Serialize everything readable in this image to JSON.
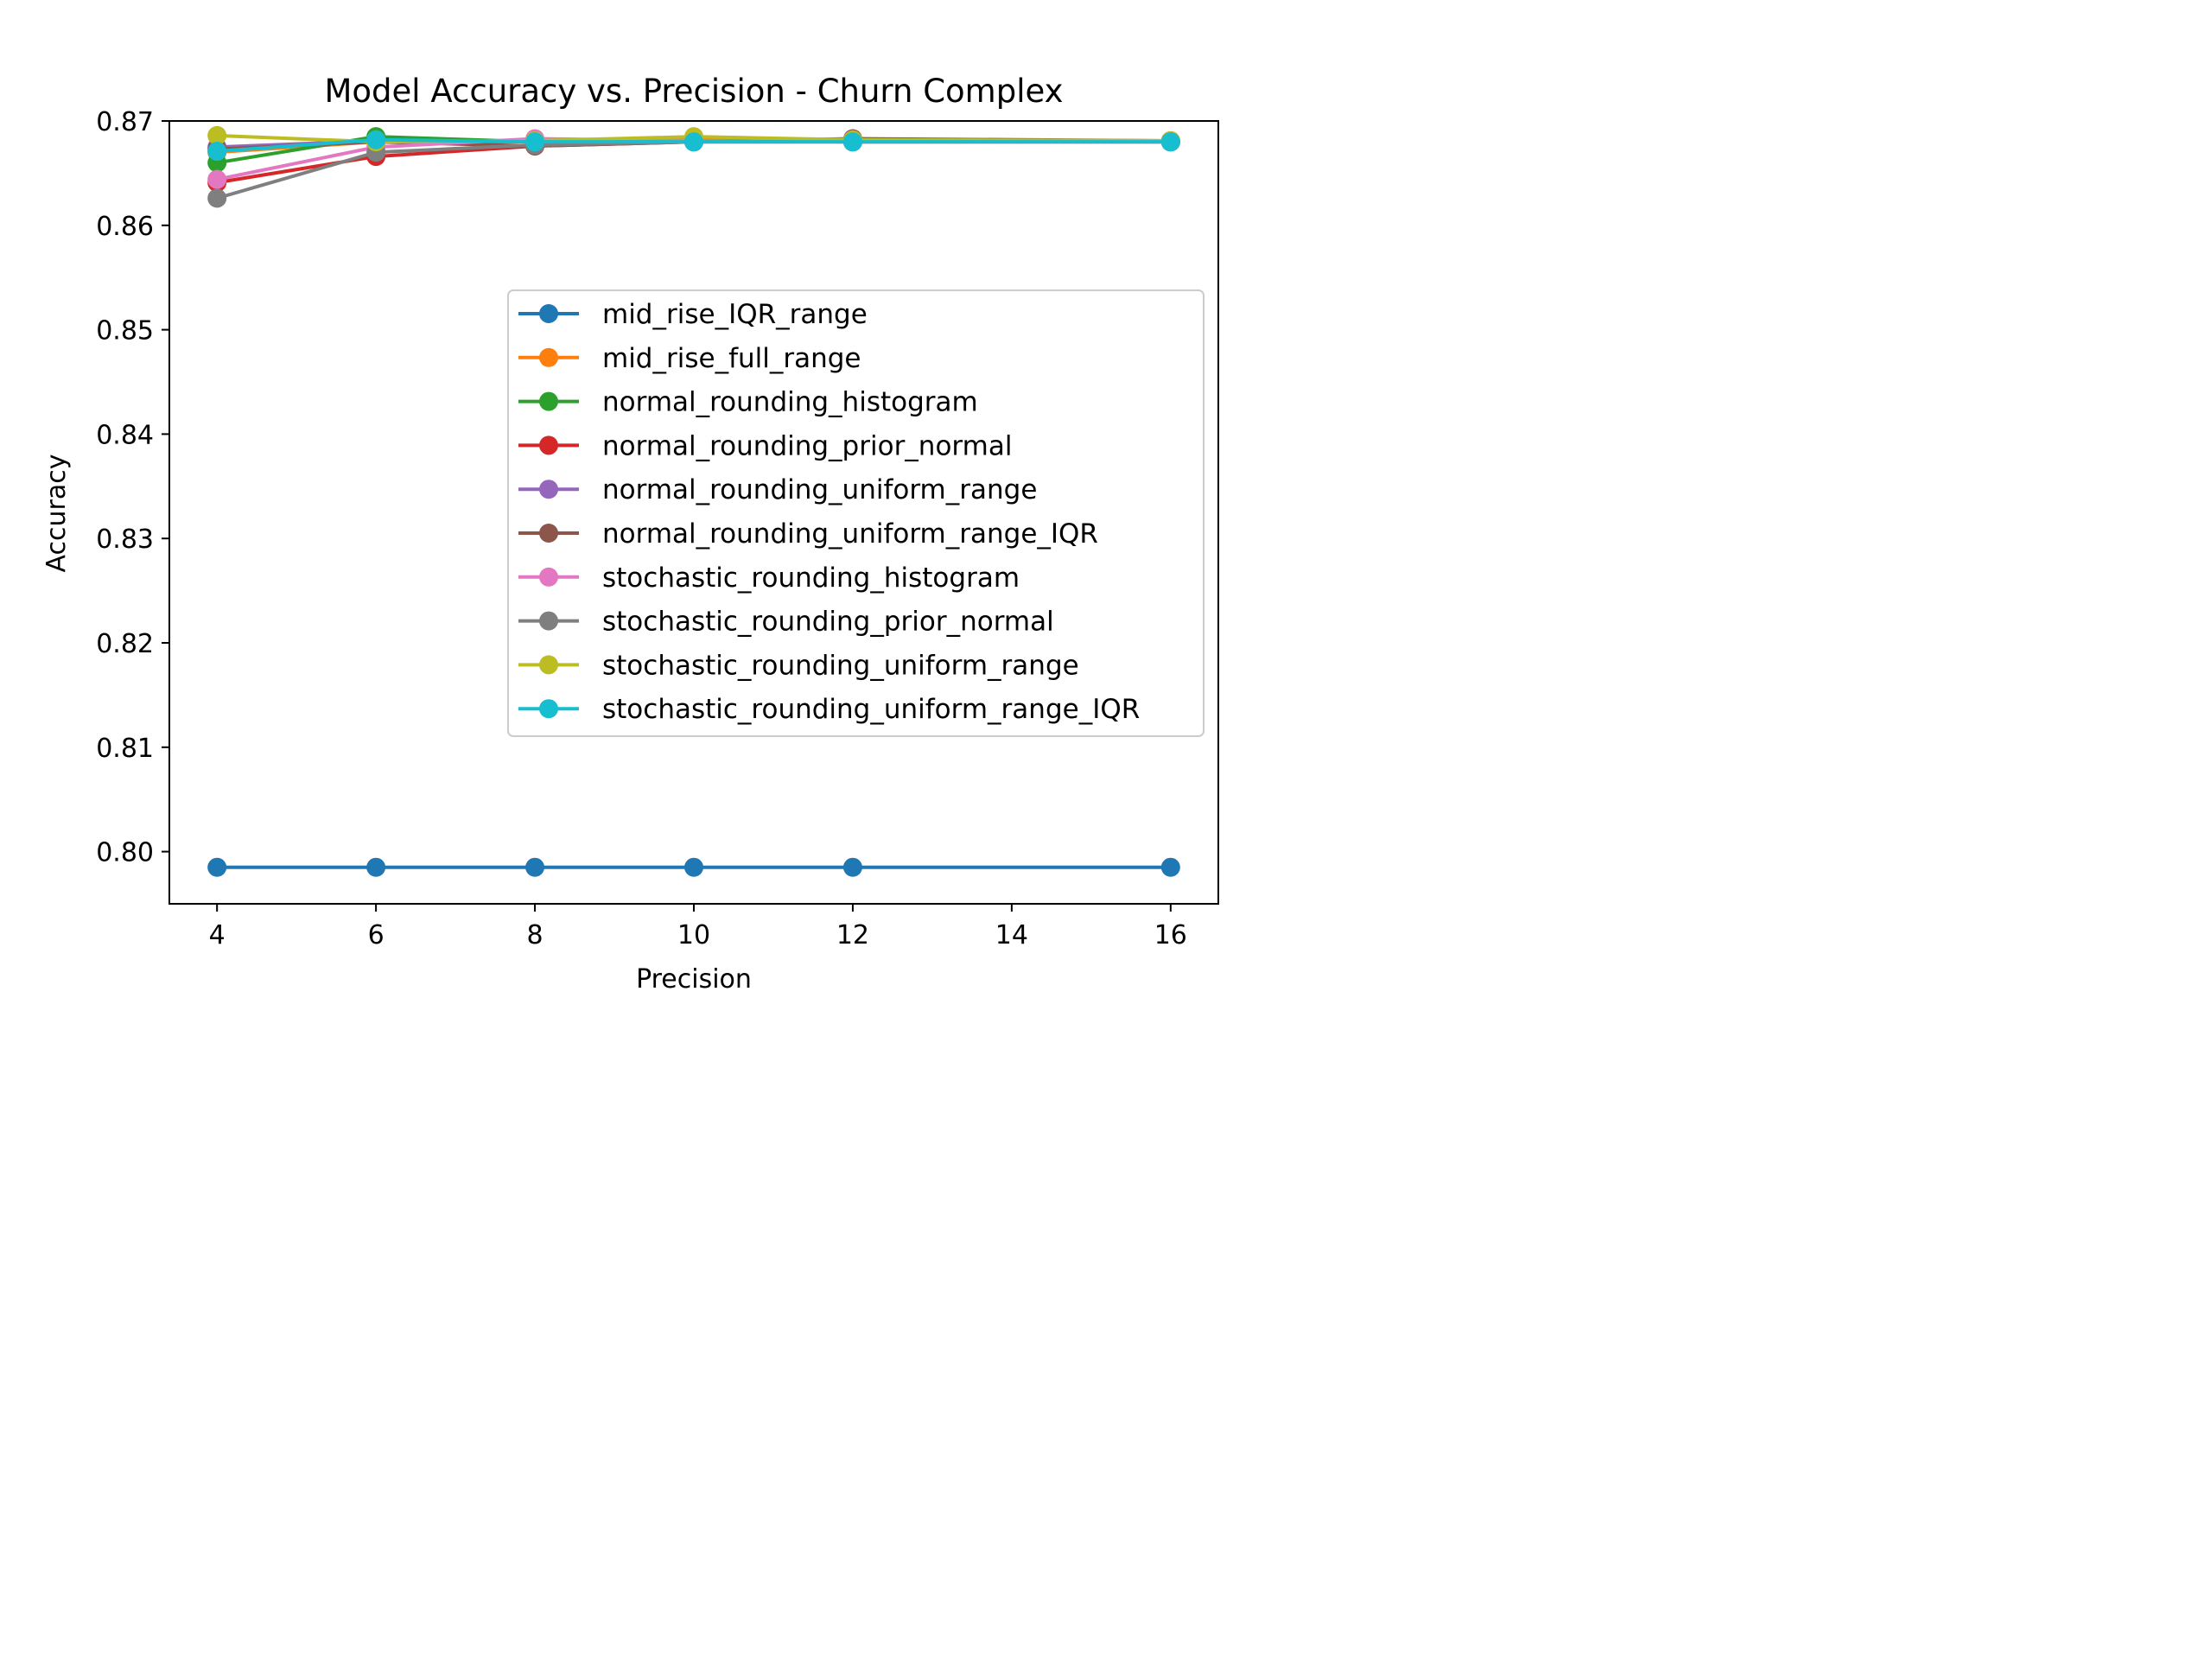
{
  "chart_data": {
    "type": "line",
    "title": "Model Accuracy vs. Precision - Churn Complex",
    "xlabel": "Precision",
    "ylabel": "Accuracy",
    "x": [
      4,
      6,
      8,
      10,
      12,
      16
    ],
    "xticks": [
      4,
      6,
      8,
      10,
      12,
      14,
      16
    ],
    "xtick_labels": [
      "4",
      "6",
      "8",
      "10",
      "12",
      "14",
      "16"
    ],
    "yticks": [
      0.8,
      0.81,
      0.82,
      0.83,
      0.84,
      0.85,
      0.86,
      0.87
    ],
    "ytick_labels": [
      "0.80",
      "0.81",
      "0.82",
      "0.83",
      "0.84",
      "0.85",
      "0.86",
      "0.87"
    ],
    "xlim": [
      3.4,
      16.6
    ],
    "ylim": [
      0.795,
      0.87
    ],
    "grid": false,
    "legend_position": "center-right",
    "series": [
      {
        "name": "mid_rise_IQR_range",
        "color": "#1f77b4",
        "values": [
          0.7985,
          0.7985,
          0.7985,
          0.7985,
          0.7985,
          0.7985
        ]
      },
      {
        "name": "mid_rise_full_range",
        "color": "#ff7f0e",
        "values": [
          0.867,
          0.868,
          0.868,
          0.8682,
          0.8681,
          0.8681
        ]
      },
      {
        "name": "normal_rounding_histogram",
        "color": "#2ca02c",
        "values": [
          0.866,
          0.8685,
          0.868,
          0.8681,
          0.8681,
          0.868
        ]
      },
      {
        "name": "normal_rounding_prior_normal",
        "color": "#d62728",
        "values": [
          0.8641,
          0.8666,
          0.8676,
          0.868,
          0.868,
          0.868
        ]
      },
      {
        "name": "normal_rounding_uniform_range",
        "color": "#9467bd",
        "values": [
          0.8675,
          0.8681,
          0.868,
          0.8681,
          0.868,
          0.868
        ]
      },
      {
        "name": "normal_rounding_uniform_range_IQR",
        "color": "#8c564b",
        "values": [
          0.8673,
          0.868,
          0.8676,
          0.868,
          0.8683,
          0.8681
        ]
      },
      {
        "name": "stochastic_rounding_histogram",
        "color": "#e377c2",
        "values": [
          0.8644,
          0.8675,
          0.8683,
          0.8681,
          0.868,
          0.8681
        ]
      },
      {
        "name": "stochastic_rounding_prior_normal",
        "color": "#7f7f7f",
        "values": [
          0.8626,
          0.867,
          0.8677,
          0.868,
          0.868,
          0.868
        ]
      },
      {
        "name": "stochastic_rounding_uniform_range",
        "color": "#bcbd22",
        "values": [
          0.8686,
          0.868,
          0.8681,
          0.8685,
          0.8682,
          0.8681
        ]
      },
      {
        "name": "stochastic_rounding_uniform_range_IQR",
        "color": "#17becf",
        "values": [
          0.8671,
          0.8682,
          0.868,
          0.868,
          0.868,
          0.868
        ]
      }
    ]
  }
}
